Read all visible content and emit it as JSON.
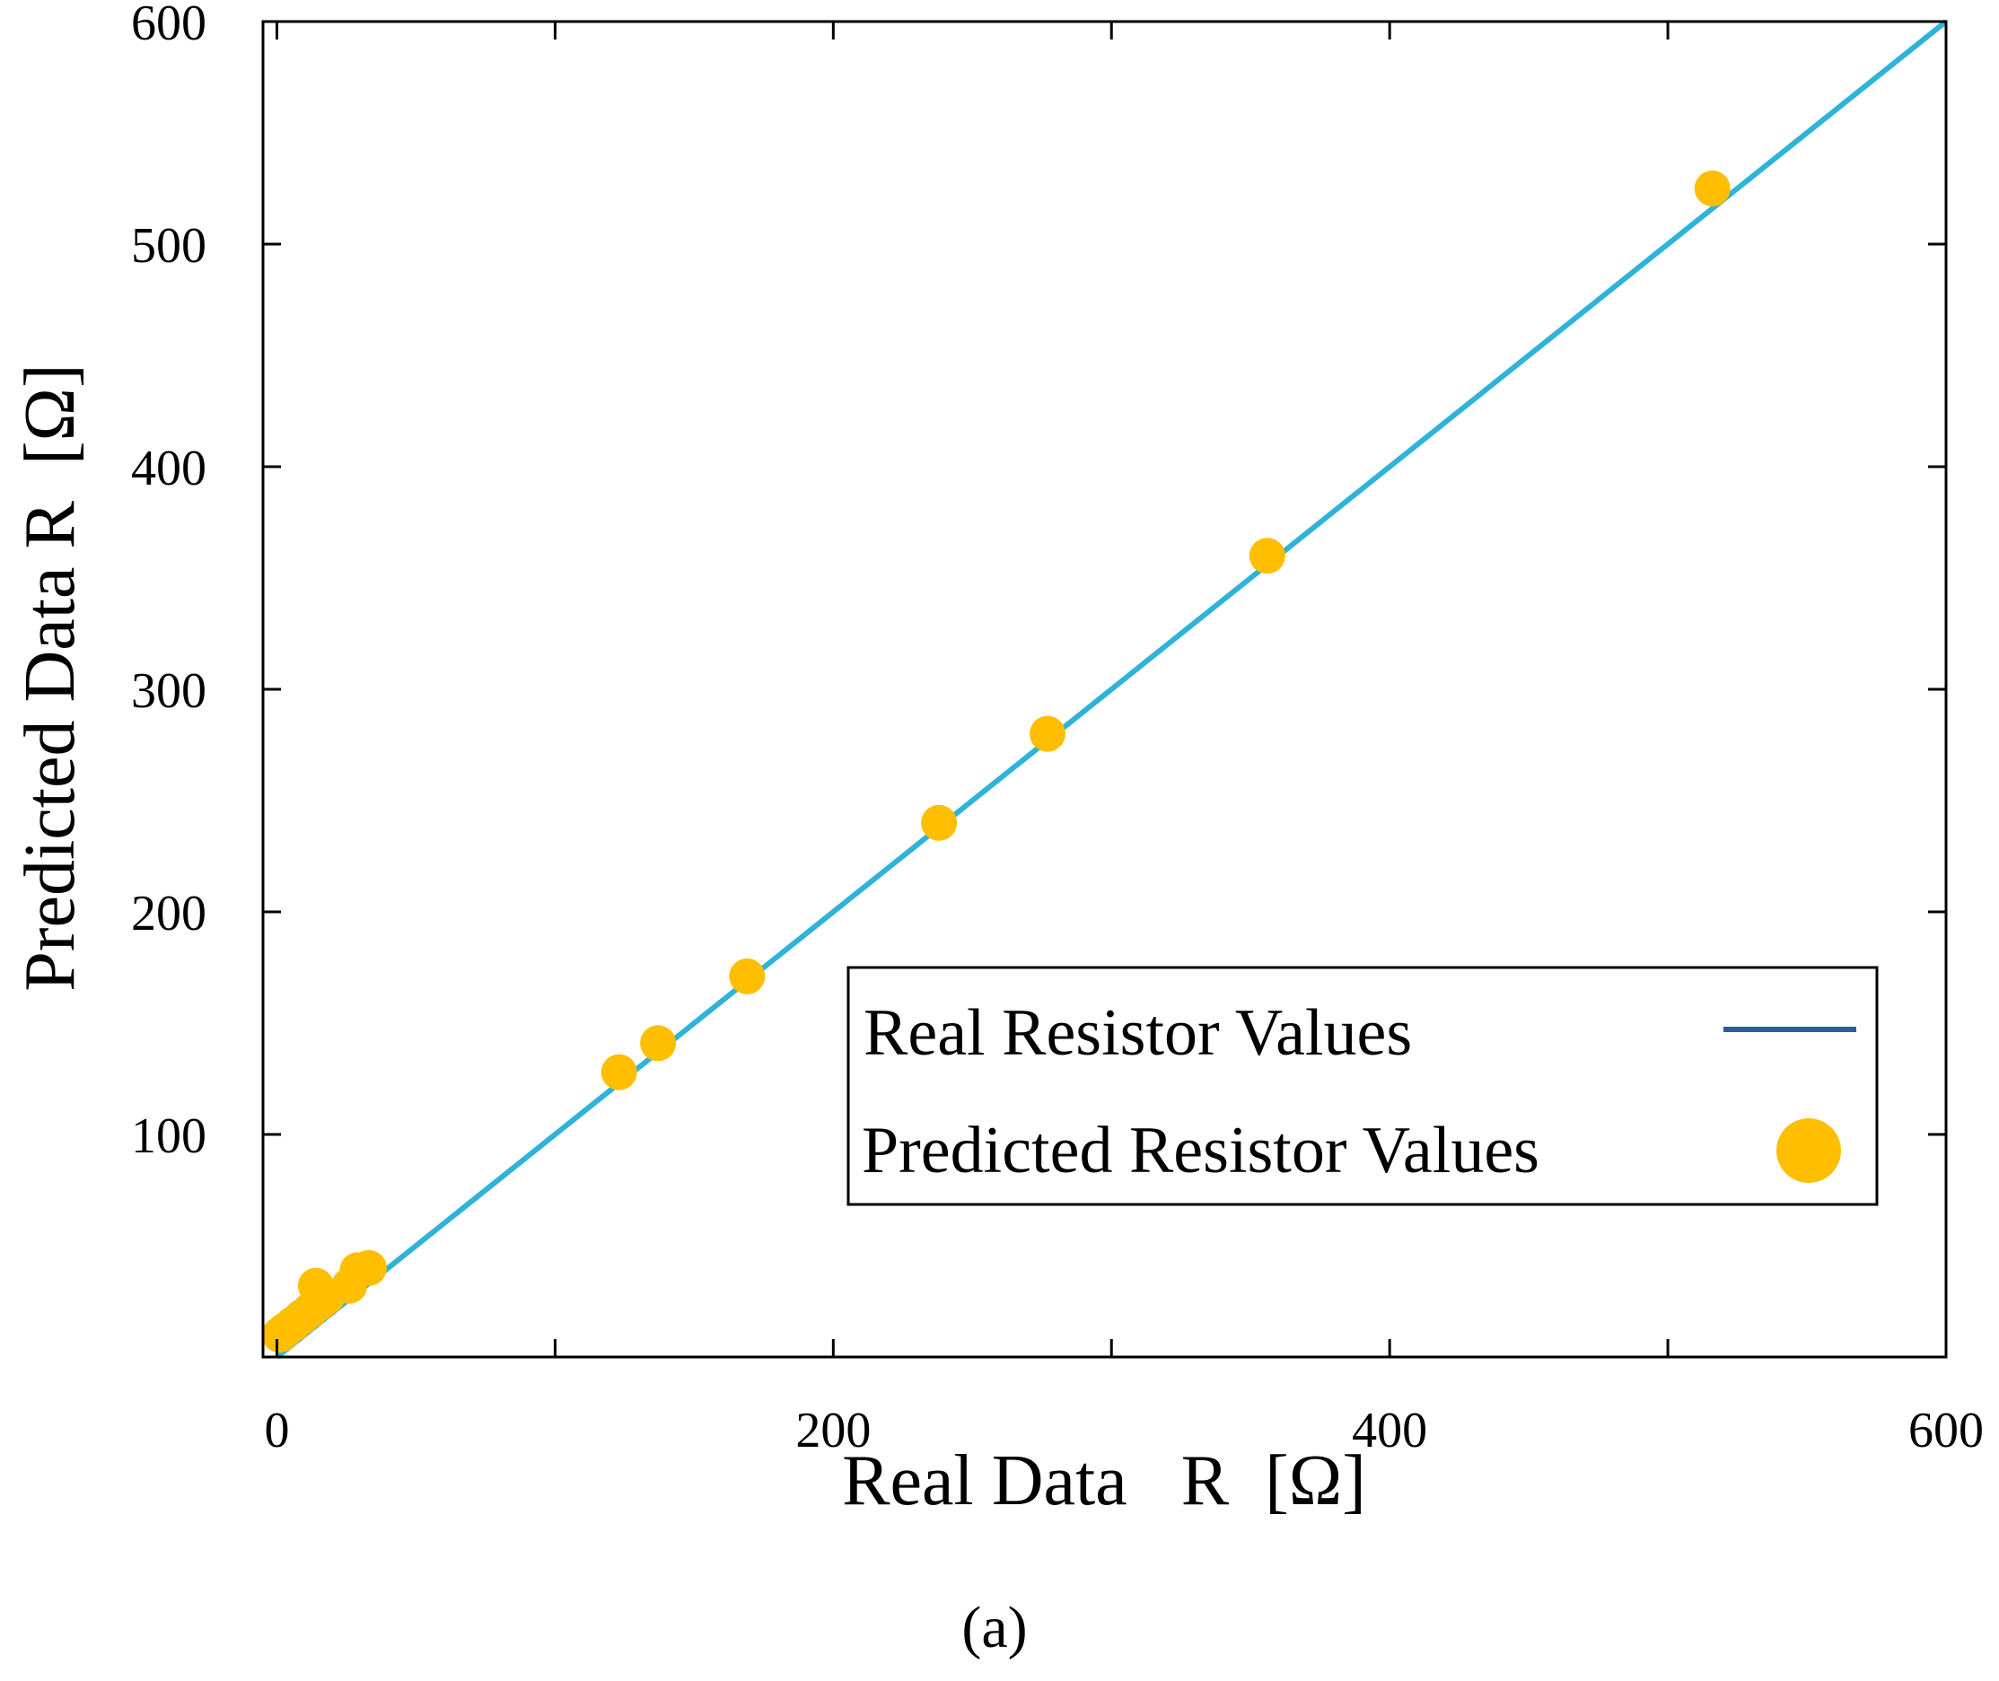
{
  "chart_data": {
    "type": "scatter",
    "title": "",
    "xlabel": "Real Data   R  [Ω]",
    "ylabel": "Predicted Data R  [Ω]",
    "xlim": [
      -5,
      600
    ],
    "ylim": [
      0,
      600
    ],
    "x_tick_labels": [
      {
        "value": 0,
        "label": "0"
      },
      {
        "value": 200,
        "label": "200"
      },
      {
        "value": 400,
        "label": "400"
      },
      {
        "value": 600,
        "label": "600"
      }
    ],
    "x_minor_ticks": [
      100,
      300,
      500
    ],
    "y_tick_labels": [
      {
        "value": 100,
        "label": "100"
      },
      {
        "value": 200,
        "label": "200"
      },
      {
        "value": 300,
        "label": "300"
      },
      {
        "value": 400,
        "label": "400"
      },
      {
        "value": 500,
        "label": "500"
      },
      {
        "value": 600,
        "label": "600"
      }
    ],
    "grid": false,
    "legend_position": "lower-right",
    "panel_label": "(a)",
    "series": [
      {
        "name": "Real Resistor Values",
        "kind": "line",
        "color": "#2fb3d8",
        "legend_color": "#2b5aa8",
        "points": [
          [
            0,
            0
          ],
          [
            600,
            600
          ]
        ]
      },
      {
        "name": "Predicted Resistor Values",
        "kind": "scatter",
        "color": "#ffbf00",
        "points": [
          [
            1,
            10
          ],
          [
            3,
            12
          ],
          [
            6,
            15
          ],
          [
            9,
            18
          ],
          [
            12,
            21
          ],
          [
            15,
            24
          ],
          [
            18,
            27
          ],
          [
            14,
            32
          ],
          [
            26,
            32
          ],
          [
            29,
            39
          ],
          [
            33,
            40
          ],
          [
            123,
            128
          ],
          [
            137,
            141
          ],
          [
            169,
            171
          ],
          [
            238,
            240
          ],
          [
            277,
            280
          ],
          [
            356,
            360
          ],
          [
            516,
            525
          ]
        ]
      }
    ]
  }
}
